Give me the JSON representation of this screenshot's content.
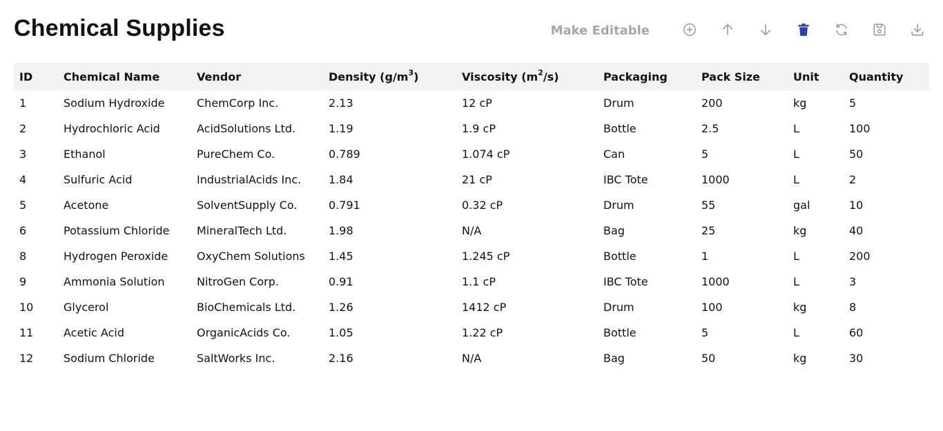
{
  "title": "Chemical Supplies",
  "toolbar": {
    "make_editable_label": "Make Editable",
    "icons": [
      "add-circle-icon",
      "arrow-up-icon",
      "arrow-down-icon",
      "trash-icon",
      "refresh-icon",
      "save-icon",
      "download-icon"
    ],
    "colors": {
      "icon_muted": "#9a9a9a",
      "trash": "#2d3fa8",
      "make_editable": "#a6a6a6"
    }
  },
  "table": {
    "headers": {
      "id": "ID",
      "name": "Chemical Name",
      "vendor": "Vendor",
      "density": "Density (g/m",
      "density_sup": "3",
      "density_end": ")",
      "viscosity": "Viscosity (m",
      "viscosity_sup": "2",
      "viscosity_end": "/s)",
      "packaging": "Packaging",
      "pack_size": "Pack Size",
      "unit": "Unit",
      "quantity": "Quantity"
    },
    "rows": [
      {
        "id": "1",
        "name": "Sodium Hydroxide",
        "vendor": "ChemCorp Inc.",
        "density": "2.13",
        "viscosity": "12 cP",
        "packaging": "Drum",
        "pack_size": "200",
        "unit": "kg",
        "quantity": "5"
      },
      {
        "id": "2",
        "name": "Hydrochloric Acid",
        "vendor": "AcidSolutions Ltd.",
        "density": "1.19",
        "viscosity": "1.9 cP",
        "packaging": "Bottle",
        "pack_size": "2.5",
        "unit": "L",
        "quantity": "100"
      },
      {
        "id": "3",
        "name": "Ethanol",
        "vendor": "PureChem Co.",
        "density": "0.789",
        "viscosity": "1.074 cP",
        "packaging": "Can",
        "pack_size": "5",
        "unit": "L",
        "quantity": "50"
      },
      {
        "id": "4",
        "name": "Sulfuric Acid",
        "vendor": "IndustrialAcids Inc.",
        "density": "1.84",
        "viscosity": "21 cP",
        "packaging": "IBC Tote",
        "pack_size": "1000",
        "unit": "L",
        "quantity": "2"
      },
      {
        "id": "5",
        "name": "Acetone",
        "vendor": "SolventSupply Co.",
        "density": "0.791",
        "viscosity": "0.32 cP",
        "packaging": "Drum",
        "pack_size": "55",
        "unit": "gal",
        "quantity": "10"
      },
      {
        "id": "6",
        "name": "Potassium Chloride",
        "vendor": "MineralTech Ltd.",
        "density": "1.98",
        "viscosity": "N/A",
        "packaging": "Bag",
        "pack_size": "25",
        "unit": "kg",
        "quantity": "40"
      },
      {
        "id": "8",
        "name": "Hydrogen Peroxide",
        "vendor": "OxyChem Solutions",
        "density": "1.45",
        "viscosity": "1.245 cP",
        "packaging": "Bottle",
        "pack_size": "1",
        "unit": "L",
        "quantity": "200"
      },
      {
        "id": "9",
        "name": "Ammonia Solution",
        "vendor": "NitroGen Corp.",
        "density": "0.91",
        "viscosity": "1.1 cP",
        "packaging": "IBC Tote",
        "pack_size": "1000",
        "unit": "L",
        "quantity": "3"
      },
      {
        "id": "10",
        "name": "Glycerol",
        "vendor": "BioChemicals Ltd.",
        "density": "1.26",
        "viscosity": "1412 cP",
        "packaging": "Drum",
        "pack_size": "100",
        "unit": "kg",
        "quantity": "8"
      },
      {
        "id": "11",
        "name": "Acetic Acid",
        "vendor": "OrganicAcids Co.",
        "density": "1.05",
        "viscosity": "1.22 cP",
        "packaging": "Bottle",
        "pack_size": "5",
        "unit": "L",
        "quantity": "60"
      },
      {
        "id": "12",
        "name": "Sodium Chloride",
        "vendor": "SaltWorks Inc.",
        "density": "2.16",
        "viscosity": "N/A",
        "packaging": "Bag",
        "pack_size": "50",
        "unit": "kg",
        "quantity": "30"
      }
    ]
  }
}
